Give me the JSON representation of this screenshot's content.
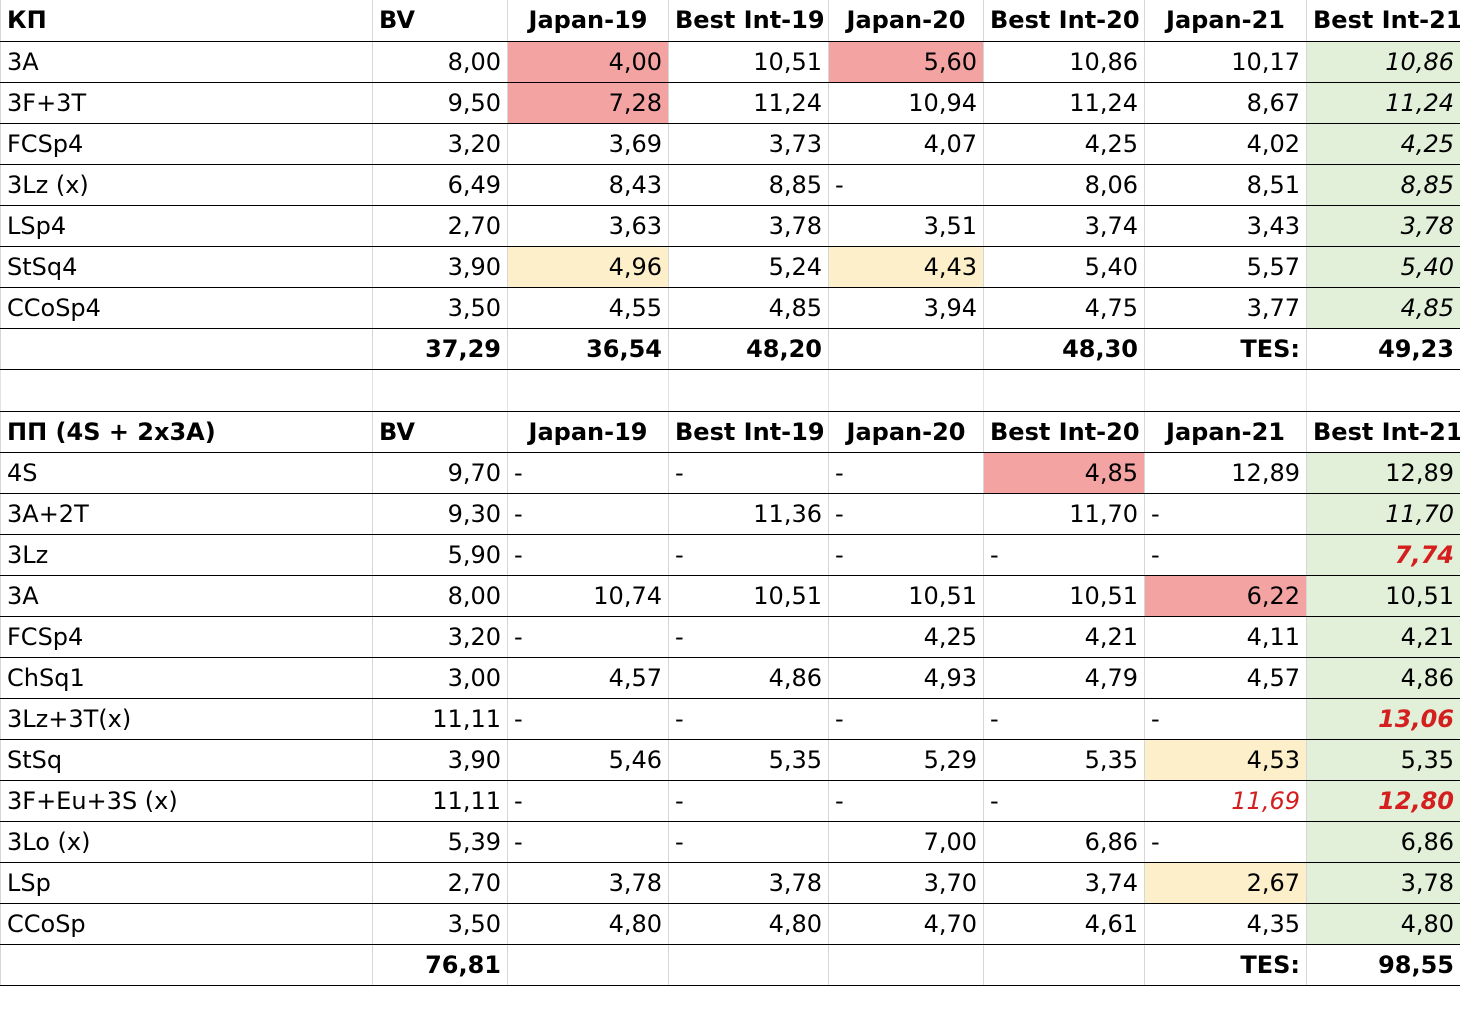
{
  "short_program": {
    "header": [
      "КП",
      "BV",
      "Japan-19",
      "Best Int-19",
      "Japan-20",
      "Best Int-20",
      "Japan-21",
      "Best Int-21"
    ],
    "rows": [
      {
        "cells": [
          "3A",
          "8,00",
          "4,00",
          "10,51",
          "5,60",
          "10,86",
          "10,17",
          "10,86"
        ],
        "styles": [
          "",
          "",
          "red",
          "",
          "red",
          "",
          "",
          "grn it"
        ]
      },
      {
        "cells": [
          "3F+3T",
          "9,50",
          "7,28",
          "11,24",
          "10,94",
          "11,24",
          "8,67",
          "11,24"
        ],
        "styles": [
          "",
          "",
          "red",
          "",
          "",
          "",
          "",
          "grn it"
        ]
      },
      {
        "cells": [
          "FCSp4",
          "3,20",
          "3,69",
          "3,73",
          "4,07",
          "4,25",
          "4,02",
          "4,25"
        ],
        "styles": [
          "",
          "",
          "",
          "",
          "",
          "",
          "",
          "grn it"
        ]
      },
      {
        "cells": [
          "3Lz (x)",
          "6,49",
          "8,43",
          "8,85",
          "-",
          "8,06",
          "8,51",
          "8,85"
        ],
        "styles": [
          "",
          "",
          "",
          "",
          "dash",
          "",
          "",
          "grn it"
        ]
      },
      {
        "cells": [
          "LSp4",
          "2,70",
          "3,63",
          "3,78",
          "3,51",
          "3,74",
          "3,43",
          "3,78"
        ],
        "styles": [
          "",
          "",
          "",
          "",
          "",
          "",
          "",
          "grn it"
        ]
      },
      {
        "cells": [
          "StSq4",
          "3,90",
          "4,96",
          "5,24",
          "4,43",
          "5,40",
          "5,57",
          "5,40"
        ],
        "styles": [
          "",
          "",
          "yel",
          "",
          "yel",
          "",
          "",
          "grn it"
        ]
      },
      {
        "cells": [
          "CCoSp4",
          "3,50",
          "4,55",
          "4,85",
          "3,94",
          "4,75",
          "3,77",
          "4,85"
        ],
        "styles": [
          "",
          "",
          "",
          "",
          "",
          "",
          "",
          "grn it"
        ]
      }
    ],
    "total": [
      "",
      "37,29",
      "36,54",
      "48,20",
      "",
      "48,30",
      "TES:",
      "49,23"
    ]
  },
  "free_program": {
    "header": [
      "ПП (4S + 2x3A)",
      "BV",
      "Japan-19",
      "Best Int-19",
      "Japan-20",
      "Best Int-20",
      "Japan-21",
      "Best Int-21"
    ],
    "rows": [
      {
        "cells": [
          "4S",
          "9,70",
          "-",
          "-",
          "-",
          "4,85",
          "12,89",
          "12,89"
        ],
        "styles": [
          "",
          "",
          "dash",
          "dash",
          "dash",
          "red",
          "",
          "grn"
        ]
      },
      {
        "cells": [
          "3A+2T",
          "9,30",
          "-",
          "11,36",
          "-",
          "11,70",
          "-",
          "11,70"
        ],
        "styles": [
          "",
          "",
          "dash",
          "",
          "dash",
          "",
          "dash",
          "grn it"
        ]
      },
      {
        "cells": [
          "3Lz",
          "5,90",
          "-",
          "-",
          "-",
          "-",
          "-",
          "7,74"
        ],
        "styles": [
          "",
          "",
          "dash",
          "dash",
          "dash",
          "dash",
          "dash",
          "grn it redtxt b"
        ]
      },
      {
        "cells": [
          "3A",
          "8,00",
          "10,74",
          "10,51",
          "10,51",
          "10,51",
          "6,22",
          "10,51"
        ],
        "styles": [
          "",
          "",
          "",
          "",
          "",
          "",
          "red",
          "grn"
        ]
      },
      {
        "cells": [
          "FCSp4",
          "3,20",
          "-",
          "-",
          "4,25",
          "4,21",
          "4,11",
          "4,21"
        ],
        "styles": [
          "",
          "",
          "dash",
          "dash",
          "",
          "",
          "",
          "grn"
        ]
      },
      {
        "cells": [
          "ChSq1",
          "3,00",
          "4,57",
          "4,86",
          "4,93",
          "4,79",
          "4,57",
          "4,86"
        ],
        "styles": [
          "",
          "",
          "",
          "",
          "",
          "",
          "",
          "grn"
        ]
      },
      {
        "cells": [
          "3Lz+3T(x)",
          "11,11",
          "-",
          "-",
          "-",
          "-",
          "-",
          "13,06"
        ],
        "styles": [
          "",
          "",
          "dash",
          "dash",
          "dash",
          "dash",
          "dash",
          "grn it redtxt b"
        ]
      },
      {
        "cells": [
          "StSq",
          "3,90",
          "5,46",
          "5,35",
          "5,29",
          "5,35",
          "4,53",
          "5,35"
        ],
        "styles": [
          "",
          "",
          "",
          "",
          "",
          "",
          "yel",
          "grn"
        ]
      },
      {
        "cells": [
          "3F+Eu+3S (x)",
          "11,11",
          "-",
          "-",
          "-",
          "-",
          "11,69",
          "12,80"
        ],
        "styles": [
          "",
          "",
          "dash",
          "dash",
          "dash",
          "dash",
          "it redtxt",
          "grn it redtxt b"
        ]
      },
      {
        "cells": [
          "3Lo (x)",
          "5,39",
          "-",
          "-",
          "7,00",
          "6,86",
          "-",
          "6,86"
        ],
        "styles": [
          "",
          "",
          "dash",
          "dash",
          "",
          "",
          "dash",
          "grn"
        ]
      },
      {
        "cells": [
          "LSp",
          "2,70",
          "3,78",
          "3,78",
          "3,70",
          "3,74",
          "2,67",
          "3,78"
        ],
        "styles": [
          "",
          "",
          "",
          "",
          "",
          "",
          "yel",
          "grn"
        ]
      },
      {
        "cells": [
          "CCoSp",
          "3,50",
          "4,80",
          "4,80",
          "4,70",
          "4,61",
          "4,35",
          "4,80"
        ],
        "styles": [
          "",
          "",
          "",
          "",
          "",
          "",
          "",
          "grn"
        ]
      }
    ],
    "total": [
      "",
      "76,81",
      "",
      "",
      "",
      "",
      "TES:",
      "98,55"
    ]
  },
  "colors": {
    "low_score_red": "#f4a3a3",
    "mid_score_yellow": "#fdefc9",
    "best_green": "#e2efd9",
    "highlight_red_text": "#d41f1f"
  }
}
